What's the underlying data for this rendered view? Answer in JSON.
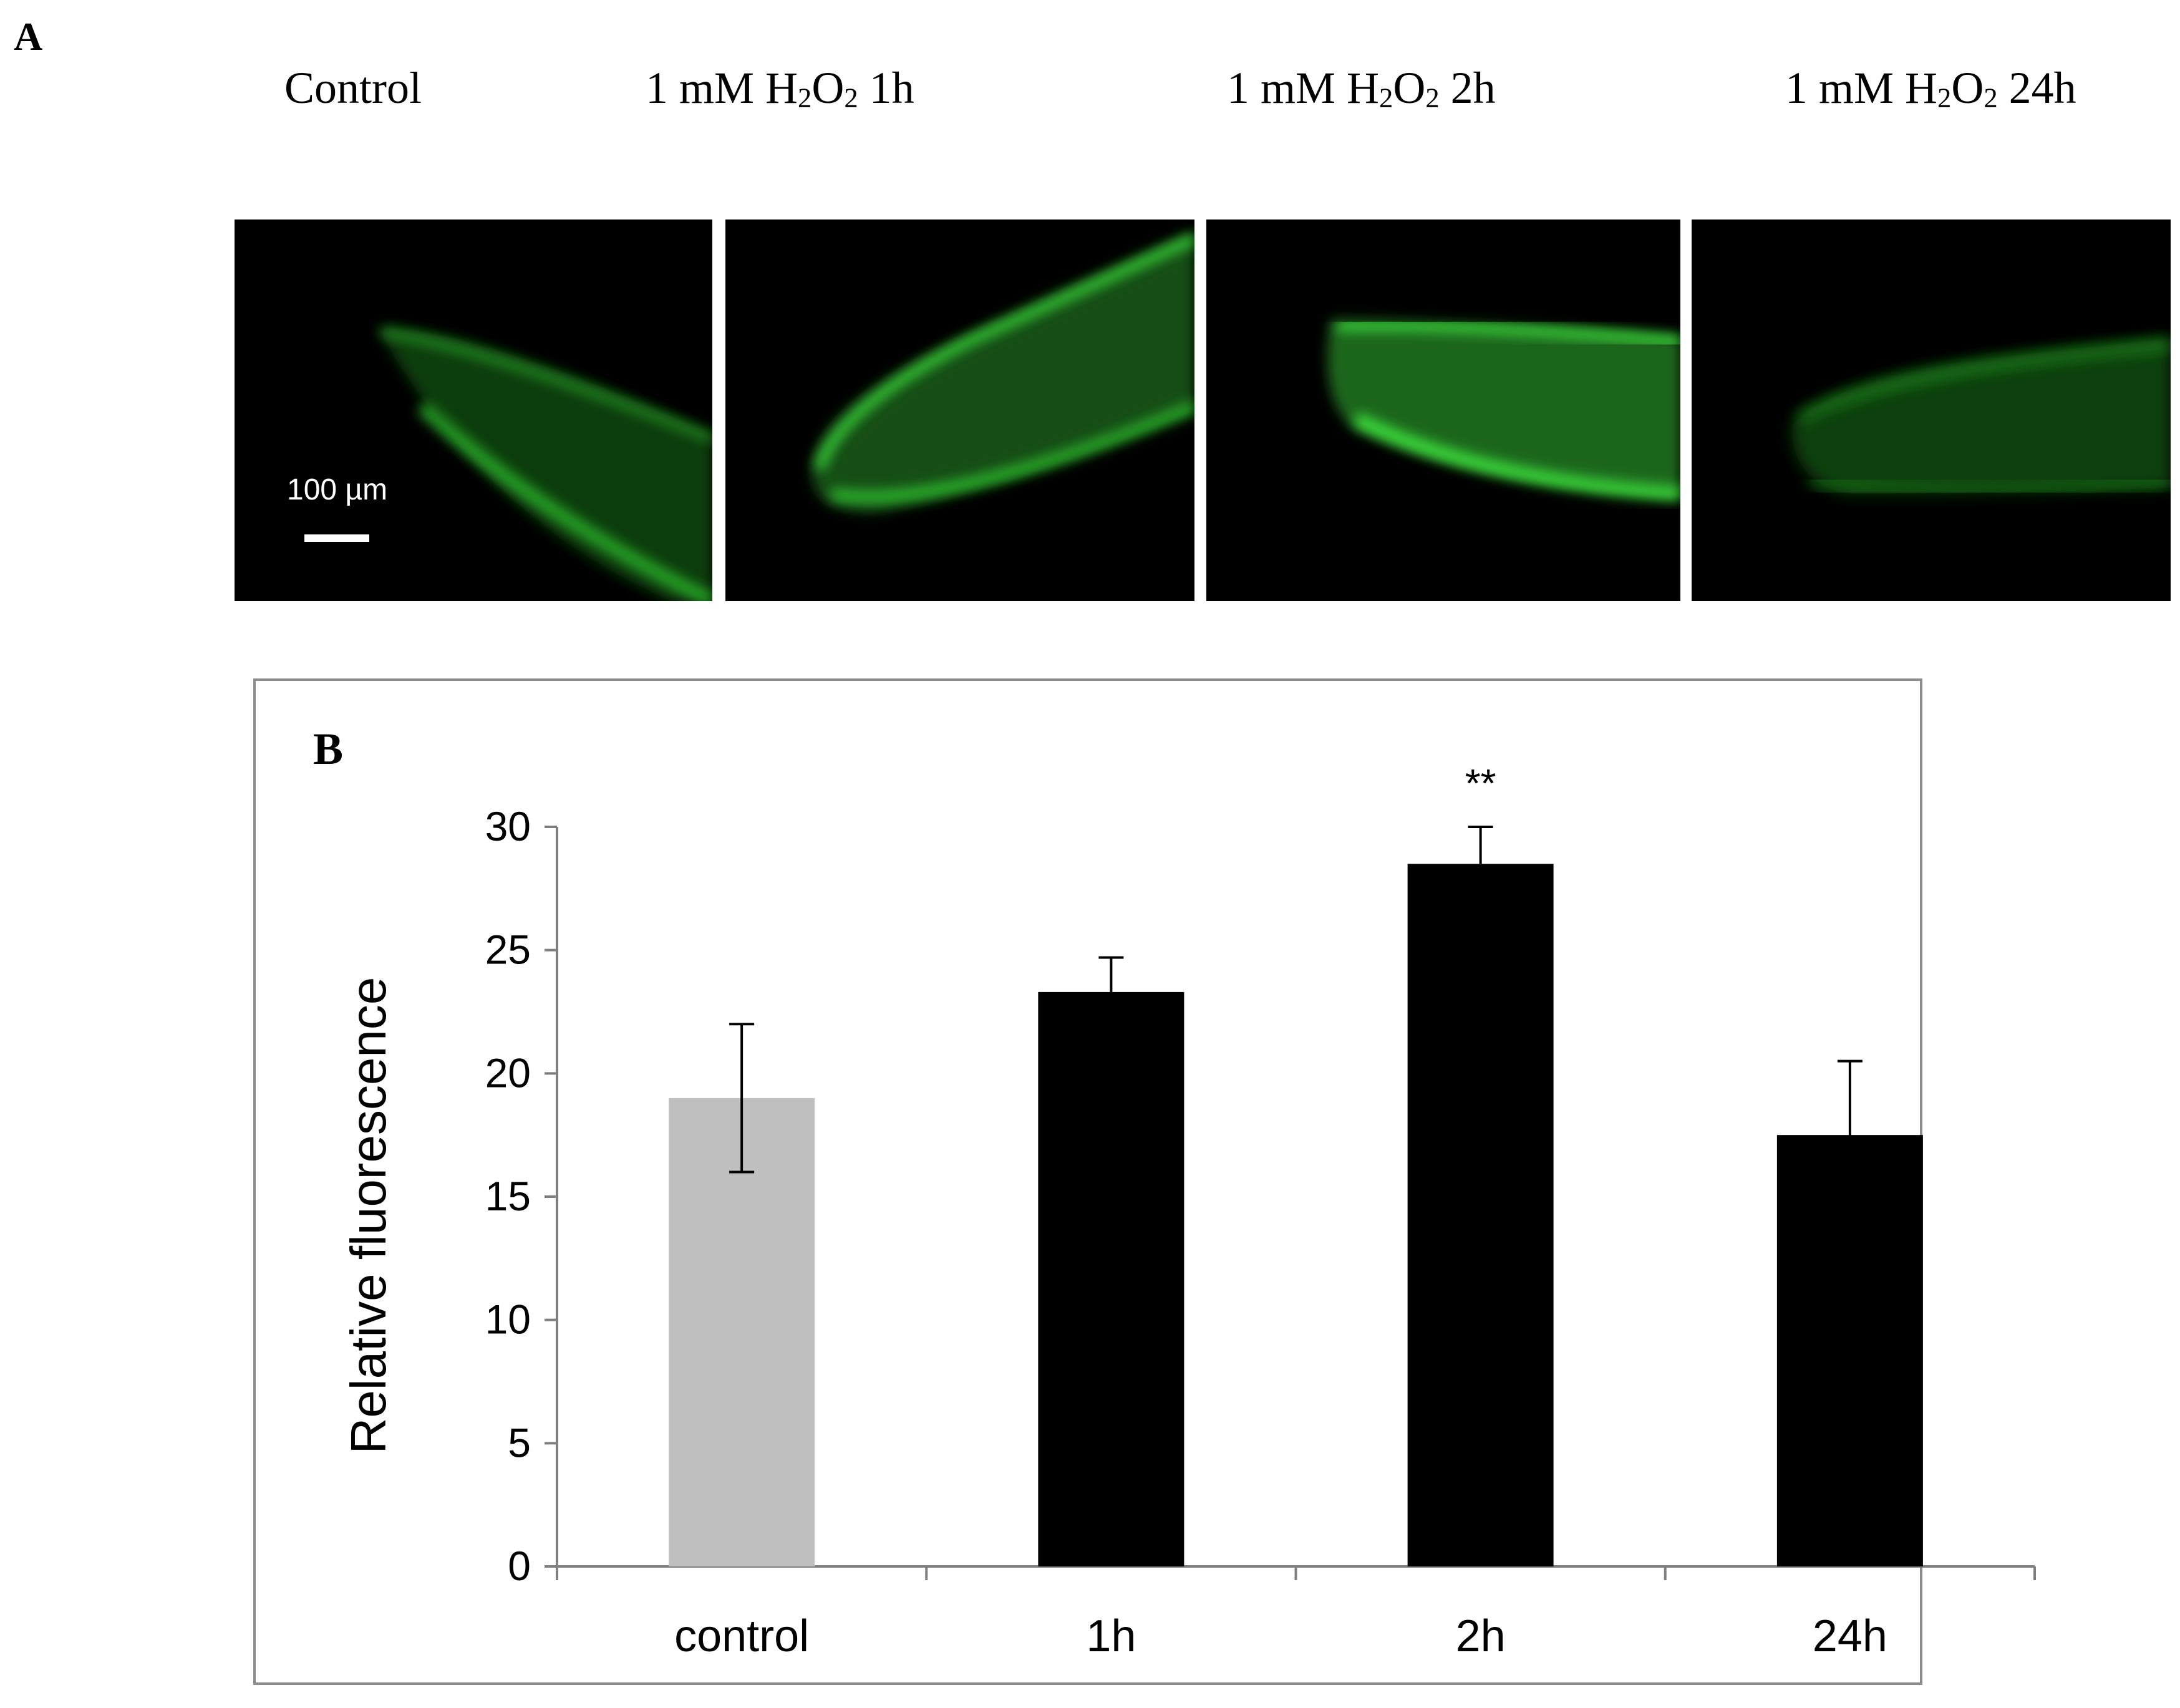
{
  "panel_a": {
    "letter": "A",
    "image_titles": [
      {
        "prefix": "Control",
        "h": "",
        "sub2a": "",
        "o": "",
        "sub2b": "",
        "suffix": ""
      },
      {
        "prefix": "1 mM ",
        "h": "H",
        "sub2a": "2",
        "o": "O",
        "sub2b": "2",
        "suffix": " 1h"
      },
      {
        "prefix": "1 mM ",
        "h": "H",
        "sub2a": "2",
        "o": "O",
        "sub2b": "2",
        "suffix": " 2h"
      },
      {
        "prefix": "1 mM ",
        "h": "H",
        "sub2a": "2",
        "o": "O",
        "sub2b": "2",
        "suffix": " 24h"
      }
    ],
    "scale_bar_label": "100 µm",
    "fluorescence_color": "#2fd12f"
  },
  "chart_data": {
    "type": "bar",
    "panel_letter": "B",
    "categories": [
      "control",
      "1h",
      "2h",
      "24h"
    ],
    "values": [
      19,
      23.3,
      28.5,
      17.5
    ],
    "errors": [
      3,
      1.4,
      1.5,
      3
    ],
    "annotations": [
      "",
      "",
      "**",
      ""
    ],
    "bar_colors": [
      "#bfbfbf",
      "#000000",
      "#000000",
      "#000000"
    ],
    "ylabel": "Relative fluorescence",
    "xlabel": "",
    "ylim": [
      0,
      30
    ],
    "yticks": [
      0,
      5,
      10,
      15,
      20,
      25,
      30
    ],
    "grid": false
  }
}
